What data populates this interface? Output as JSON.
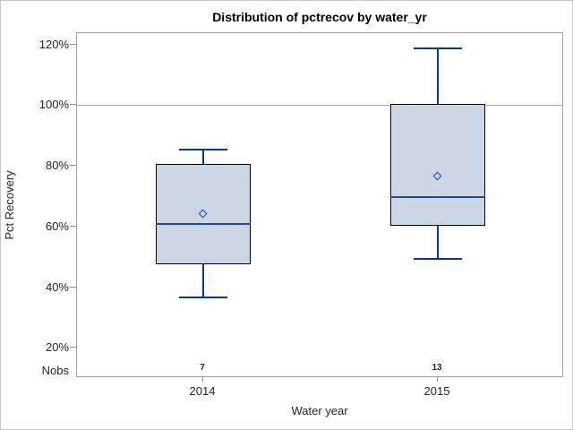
{
  "chart_data": {
    "type": "boxplot",
    "title": "Distribution of pctrecov by water_yr",
    "xlabel": "Water year",
    "ylabel": "Pct Recovery",
    "nobs_label": "Nobs",
    "categories": [
      "2014",
      "2015"
    ],
    "nobs": [
      "7",
      "13"
    ],
    "series": [
      {
        "category": "2014",
        "n": 7,
        "whisker_low": 37,
        "q1": 47.5,
        "median": 61,
        "mean": 64,
        "q3": 80.5,
        "whisker_high": 85.5
      },
      {
        "category": "2015",
        "n": 13,
        "whisker_low": 49.5,
        "q1": 60.5,
        "median": 70,
        "mean": 76.5,
        "q3": 100.5,
        "whisker_high": 119
      }
    ],
    "yticks": [
      20,
      40,
      60,
      80,
      100,
      120
    ],
    "ytick_labels": [
      "20%",
      "40%",
      "60%",
      "80%",
      "100%",
      "120%"
    ],
    "ylim": [
      10.1,
      123.7
    ],
    "reference_line": 100,
    "grid": "off",
    "legend": "none",
    "colors": {
      "box_fill": "#ccd6e4",
      "box_border": "#000000",
      "median": "#2148a8",
      "whisker": "#0a3a8f",
      "mean_marker": "#2148a8",
      "reference": "#a9aeb3",
      "frame": "#9aa3ab",
      "text": "#262626"
    }
  }
}
